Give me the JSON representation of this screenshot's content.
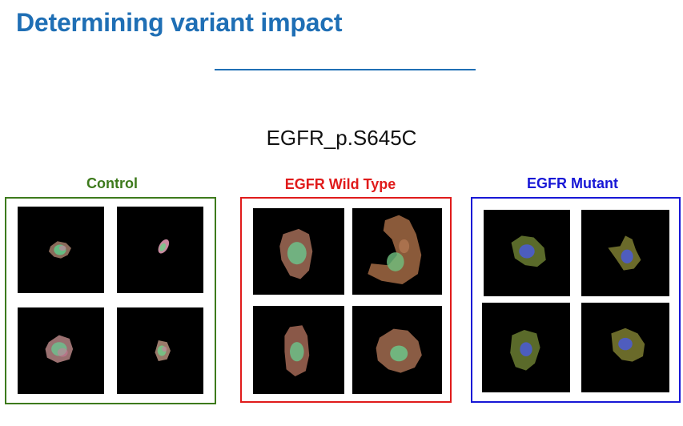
{
  "title": "Determining variant impact",
  "subtitle": "EGFR_p.S645C",
  "groups": [
    {
      "label": "Control",
      "color": "#3d7a1c"
    },
    {
      "label": "EGFR Wild Type",
      "color": "#e01b1b"
    },
    {
      "label": "EGFR Mutant",
      "color": "#1717d6"
    }
  ]
}
